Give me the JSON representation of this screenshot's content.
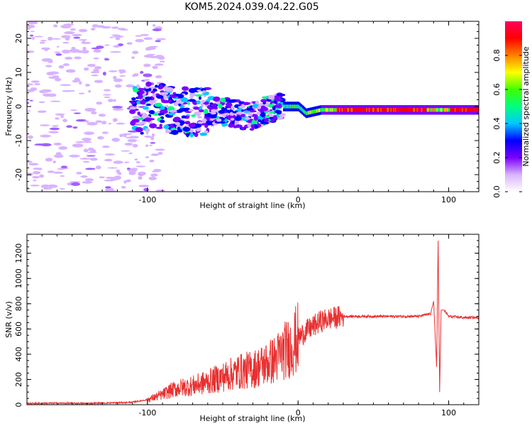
{
  "title": "KOM5.2024.039.04.22.G05",
  "chart_data": [
    {
      "type": "heatmap",
      "title": "",
      "xlabel": "Height of straight line (km)",
      "ylabel": "Frequency (Hz)",
      "xlim": [
        -180,
        120
      ],
      "ylim": [
        -25,
        25
      ],
      "xticks": [
        -100,
        0,
        100
      ],
      "yticks": [
        -20,
        -10,
        0,
        10,
        20
      ],
      "colorbar": {
        "label": "Normalized spectral amplitude",
        "range": [
          0,
          1
        ],
        "ticks": [
          "0.0",
          "0.2",
          "0.4",
          "0.6",
          "0.8"
        ],
        "colors": [
          "#ffffff",
          "#d9b3ff",
          "#7a00ff",
          "#0000ff",
          "#00c8ff",
          "#00ff80",
          "#40ff00",
          "#ffff00",
          "#ff8000",
          "#ff0000",
          "#ff0060"
        ]
      },
      "ridge": [
        {
          "x": -100,
          "y": 0
        },
        {
          "x": -75,
          "y": -1.5
        },
        {
          "x": -50,
          "y": -1.5
        },
        {
          "x": -30,
          "y": -3
        },
        {
          "x": -15,
          "y": 0
        },
        {
          "x": 0,
          "y": 0
        },
        {
          "x": 5,
          "y": -2
        },
        {
          "x": 15,
          "y": -1
        },
        {
          "x": 30,
          "y": -1
        },
        {
          "x": 120,
          "y": -1
        }
      ]
    },
    {
      "type": "line",
      "title": "",
      "xlabel": "Height of straight line (km)",
      "ylabel": "SNR (v/v)",
      "xlim": [
        -180,
        120
      ],
      "ylim": [
        0,
        1350
      ],
      "xticks": [
        -100,
        0,
        100
      ],
      "yticks": [
        0,
        200,
        400,
        600,
        800,
        1000,
        1200
      ],
      "color": "#e83030",
      "series": [
        {
          "x": [
            -180,
            -160,
            -140,
            -120,
            -110,
            -100,
            -90,
            -85,
            -80,
            -70,
            -60,
            -50,
            -40,
            -30,
            -20,
            -15,
            -10,
            -5,
            0,
            5,
            10,
            15,
            20,
            25,
            30,
            40,
            50,
            60,
            70,
            80,
            88,
            90,
            92,
            93,
            94,
            95,
            97,
            100,
            110,
            120
          ],
          "y": [
            10,
            12,
            10,
            15,
            20,
            40,
            80,
            110,
            130,
            150,
            180,
            220,
            260,
            280,
            330,
            360,
            420,
            460,
            530,
            580,
            620,
            660,
            680,
            690,
            700,
            700,
            700,
            700,
            700,
            700,
            720,
            820,
            300,
            1300,
            100,
            750,
            750,
            700,
            690,
            690
          ]
        }
      ]
    }
  ]
}
